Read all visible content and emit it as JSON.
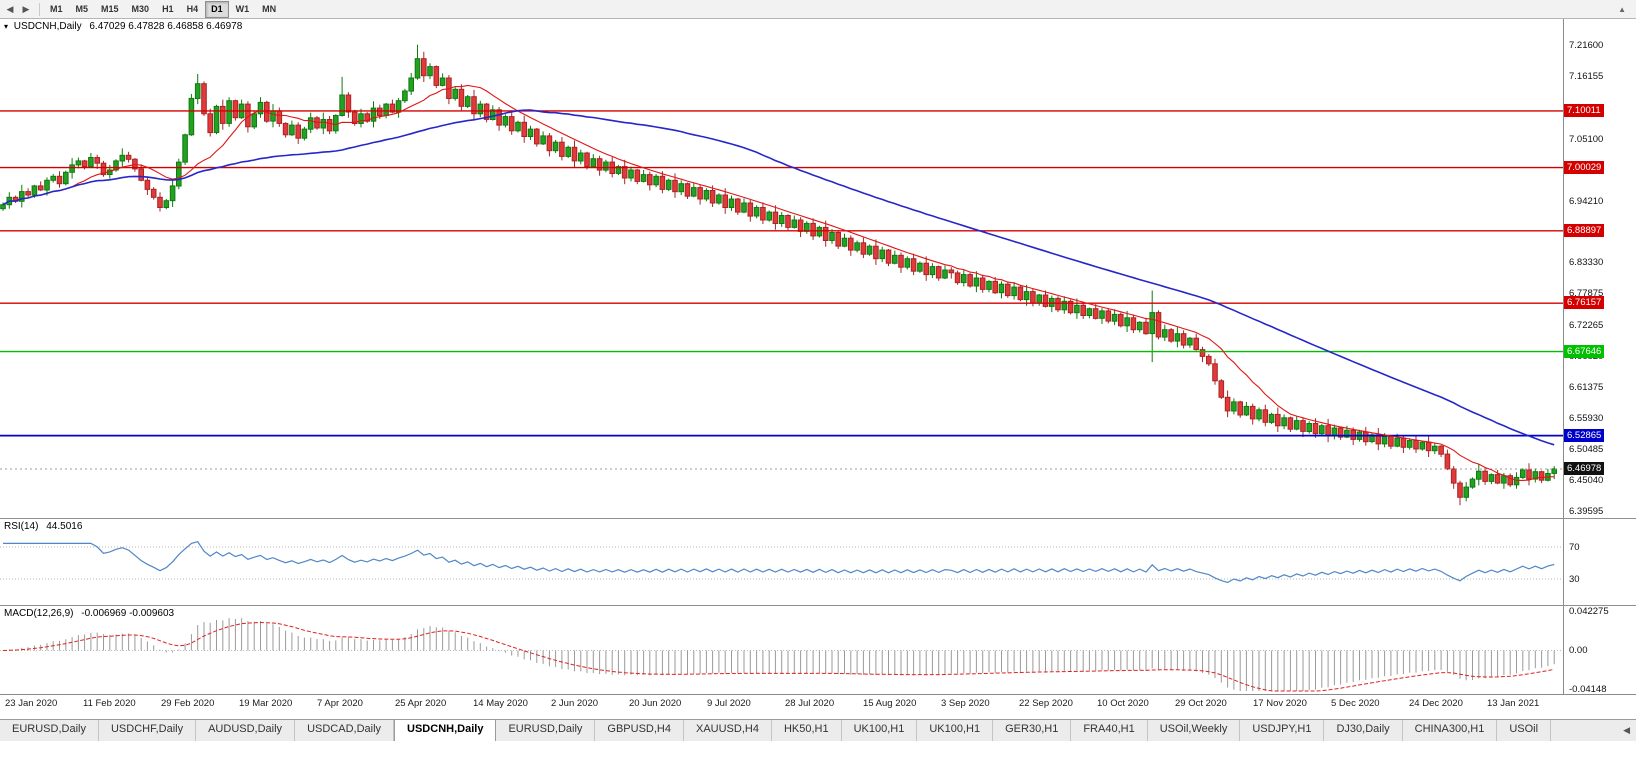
{
  "toolbar": {
    "timeframes": [
      "M1",
      "M5",
      "M15",
      "M30",
      "H1",
      "H4",
      "D1",
      "W1",
      "MN"
    ],
    "selected": "D1",
    "left_icons": [
      "chart-shift-icon",
      "auto-scroll-icon"
    ],
    "right_icon": "collapse-panel-icon"
  },
  "chart_data": {
    "type": "candlestick",
    "symbol": "USDCNH,Daily",
    "ohlc_line": "6.47029 6.47828 6.46858 6.46978",
    "ylim": [
      6.3836,
      7.2618
    ],
    "y_ticks": [
      "7.21600",
      "7.16155",
      "7.05100",
      "6.94210",
      "6.83330",
      "6.77875",
      "6.72265",
      "6.66820",
      "6.61375",
      "6.55930",
      "6.50485",
      "6.45040",
      "6.39595"
    ],
    "x_labels": [
      "23 Jan 2020",
      "11 Feb 2020",
      "29 Feb 2020",
      "19 Mar 2020",
      "7 Apr 2020",
      "25 Apr 2020",
      "14 May 2020",
      "2 Jun 2020",
      "20 Jun 2020",
      "9 Jul 2020",
      "28 Jul 2020",
      "15 Aug 2020",
      "3 Sep 2020",
      "22 Sep 2020",
      "10 Oct 2020",
      "29 Oct 2020",
      "17 Nov 2020",
      "5 Dec 2020",
      "24 Dec 2020",
      "13 Jan 2021"
    ],
    "hlines": [
      {
        "price": 7.10011,
        "label": "7.10011",
        "color": "#d40000",
        "width": 1.4
      },
      {
        "price": 7.00029,
        "label": "7.00029",
        "color": "#d40000",
        "width": 1.4
      },
      {
        "price": 6.88897,
        "label": "6.88897",
        "color": "#d40000",
        "width": 1.4
      },
      {
        "price": 6.76157,
        "label": "6.76157",
        "color": "#d40000",
        "width": 1.4
      },
      {
        "price": 6.67646,
        "label": "6.67646",
        "color": "#00c000",
        "width": 1.4
      },
      {
        "price": 6.52865,
        "label": "6.52865",
        "color": "#0000cd",
        "width": 1.8
      }
    ],
    "current_price": {
      "value": 6.46978,
      "label": "6.46978",
      "badge_color": "#111111"
    },
    "candle_up": {
      "fill": "#22a122",
      "stroke": "#0f7a0f"
    },
    "candle_dn": {
      "fill": "#e23a3a",
      "stroke": "#a82424"
    },
    "ma_fast": {
      "period": 12,
      "color": "#e01515"
    },
    "ma_slow": {
      "period": 55,
      "color": "#2626c9"
    },
    "first_open": 6.928,
    "closes": [
      6.935,
      6.948,
      6.941,
      6.958,
      6.952,
      6.968,
      6.961,
      6.978,
      6.985,
      6.972,
      6.992,
      7.005,
      7.012,
      7.002,
      7.018,
      7.008,
      6.988,
      6.996,
      7.012,
      7.022,
      7.015,
      6.998,
      6.978,
      6.962,
      6.948,
      6.93,
      6.942,
      6.968,
      7.01,
      7.058,
      7.122,
      7.148,
      7.095,
      7.062,
      7.108,
      7.078,
      7.118,
      7.088,
      7.112,
      7.072,
      7.095,
      7.115,
      7.082,
      7.1,
      7.078,
      7.058,
      7.075,
      7.052,
      7.068,
      7.088,
      7.07,
      7.085,
      7.065,
      7.092,
      7.128,
      7.098,
      7.078,
      7.095,
      7.082,
      7.105,
      7.092,
      7.112,
      7.098,
      7.118,
      7.135,
      7.158,
      7.192,
      7.162,
      7.178,
      7.145,
      7.158,
      7.122,
      7.138,
      7.108,
      7.125,
      7.095,
      7.112,
      7.085,
      7.102,
      7.075,
      7.09,
      7.065,
      7.08,
      7.055,
      7.068,
      7.042,
      7.056,
      7.03,
      7.045,
      7.02,
      7.036,
      7.012,
      7.026,
      7.002,
      7.016,
      6.996,
      7.01,
      6.99,
      7.002,
      6.982,
      6.996,
      6.976,
      6.988,
      6.97,
      6.985,
      6.962,
      6.978,
      6.958,
      6.972,
      6.95,
      6.965,
      6.945,
      6.96,
      6.938,
      6.952,
      6.93,
      6.945,
      6.922,
      6.938,
      6.915,
      6.93,
      6.908,
      6.922,
      6.902,
      6.916,
      6.895,
      6.908,
      6.888,
      6.902,
      6.88,
      6.895,
      6.872,
      6.886,
      6.862,
      6.876,
      6.855,
      6.868,
      6.848,
      6.862,
      6.84,
      6.855,
      6.832,
      6.846,
      6.825,
      6.84,
      6.818,
      6.832,
      6.812,
      6.826,
      6.806,
      6.82,
      6.815,
      6.798,
      6.812,
      6.792,
      6.806,
      6.786,
      6.8,
      6.78,
      6.795,
      6.775,
      6.79,
      6.768,
      6.782,
      6.762,
      6.776,
      6.756,
      6.77,
      6.75,
      6.765,
      6.745,
      6.758,
      6.74,
      6.752,
      6.735,
      6.748,
      6.73,
      6.742,
      6.722,
      6.736,
      6.715,
      6.728,
      6.708,
      6.745,
      6.702,
      6.715,
      6.695,
      6.708,
      6.688,
      6.7,
      6.68,
      6.668,
      6.655,
      6.625,
      6.596,
      6.572,
      6.588,
      6.565,
      6.58,
      6.558,
      6.574,
      6.552,
      6.566,
      6.546,
      6.56,
      6.54,
      6.555,
      6.536,
      6.55,
      6.532,
      6.546,
      6.528,
      6.542,
      6.526,
      6.538,
      6.522,
      6.535,
      6.518,
      6.53,
      6.514,
      6.527,
      6.51,
      6.524,
      6.508,
      6.52,
      6.505,
      6.517,
      6.502,
      6.51,
      6.496,
      6.47,
      6.445,
      6.42,
      6.438,
      6.452,
      6.466,
      6.448,
      6.46,
      6.445,
      6.458,
      6.442,
      6.455,
      6.468,
      6.452,
      6.465,
      6.45,
      6.462,
      6.47
    ],
    "wick_up": [
      0.004,
      0.009,
      0.003,
      0.012,
      0.006,
      0.002,
      0.008,
      0.005
    ],
    "wick_dn": [
      0.005,
      0.002,
      0.01,
      0.004,
      0.007,
      0.003,
      0.011,
      0.006
    ],
    "wick_overrides": {
      "31": {
        "h": 7.165
      },
      "54": {
        "h": 7.16
      },
      "66": {
        "h": 7.2166
      },
      "183": {
        "h": 6.784,
        "l": 6.658
      },
      "232": {
        "l": 6.406
      }
    }
  },
  "rsi": {
    "title": "RSI(14)",
    "value": "44.5016",
    "period": 14,
    "levels": [
      70,
      30
    ],
    "color": "#4f87c7"
  },
  "macd": {
    "title": "MACD(12,26,9)",
    "values": "-0.006969 -0.009603",
    "fast": 12,
    "slow": 26,
    "signal": 9,
    "range": [
      -0.0435,
      0.0445
    ],
    "axis_labels": [
      {
        "text": "0.042275",
        "value": 0.042275
      },
      {
        "text": "0.00",
        "value": 0
      },
      {
        "text": "-0.04148",
        "value": -0.04148
      }
    ],
    "hist_color": "#9a9a9a",
    "signal_color": "#dd2222"
  },
  "tabs": {
    "active_index": 4,
    "items": [
      "EURUSD,Daily",
      "USDCHF,Daily",
      "AUDUSD,Daily",
      "USDCAD,Daily",
      "USDCNH,Daily",
      "EURUSD,Daily",
      "GBPUSD,H4",
      "XAUUSD,H4",
      "HK50,H1",
      "UK100,H1",
      "UK100,H1",
      "GER30,H1",
      "FRA40,H1",
      "USOil,Weekly",
      "USDJPY,H1",
      "DJ30,Daily",
      "CHINA300,H1",
      "USOil"
    ]
  }
}
